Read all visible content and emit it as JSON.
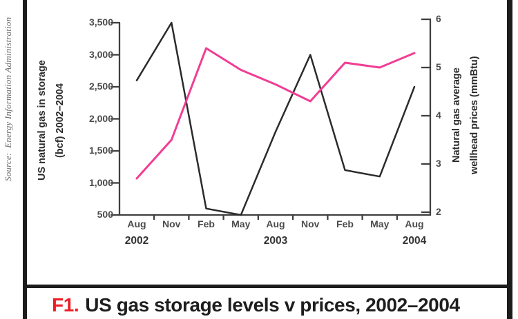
{
  "source_text": "Source:  Energy Information Administration",
  "caption": {
    "number": "F1.",
    "text": "US gas storage levels v prices, 2002–2004"
  },
  "colors": {
    "price_line_pink": "#f13d94",
    "storage_line_black": "#2b2b2b",
    "caption_number_red": "#ed1c24",
    "axis_gray": "#3f3f3f",
    "tick_text_gray": "#4b4b4b",
    "frame_black": "#1c1c1c"
  },
  "chart_data": {
    "type": "line",
    "grid": false,
    "legend_position": "none",
    "x_tick_labels": [
      "Aug",
      "Nov",
      "Feb",
      "May",
      "Aug",
      "Nov",
      "Feb",
      "May",
      "Aug"
    ],
    "x_year_labels": [
      {
        "label": "2002",
        "month_index": 0
      },
      {
        "label": "2003",
        "month_index": 4
      },
      {
        "label": "2004",
        "month_index": 8
      }
    ],
    "left_axis": {
      "label_line1": "US natural gas in storage",
      "label_line2": "(bcf) 2002–2004",
      "min": 500,
      "max": 3500,
      "tick_values": [
        500,
        1000,
        1500,
        2000,
        2500,
        3000,
        3500
      ],
      "tick_labels": [
        "500",
        "1,000",
        "1,500",
        "2,000",
        "2,500",
        "3,000",
        "3,500"
      ]
    },
    "right_axis": {
      "label_line1": "Natural gas average",
      "label_line2": "wellhead prices (mmBtu)",
      "min": 2,
      "max": 6,
      "tick_values": [
        2,
        3,
        4,
        5,
        6
      ],
      "tick_labels": [
        "2",
        "3",
        "4",
        "5",
        "6"
      ]
    },
    "series": [
      {
        "name": "US natural gas in storage (bcf)",
        "axis": "left",
        "color": "#2b2b2b",
        "values": [
          2600,
          3500,
          600,
          500,
          1800,
          3000,
          1200,
          1100,
          2500
        ]
      },
      {
        "name": "Natural gas average wellhead prices (mmBtu)",
        "axis": "right",
        "color": "#f13d94",
        "values": [
          2.7,
          3.5,
          5.4,
          4.95,
          4.65,
          4.3,
          5.1,
          5.0,
          5.3
        ]
      }
    ]
  }
}
